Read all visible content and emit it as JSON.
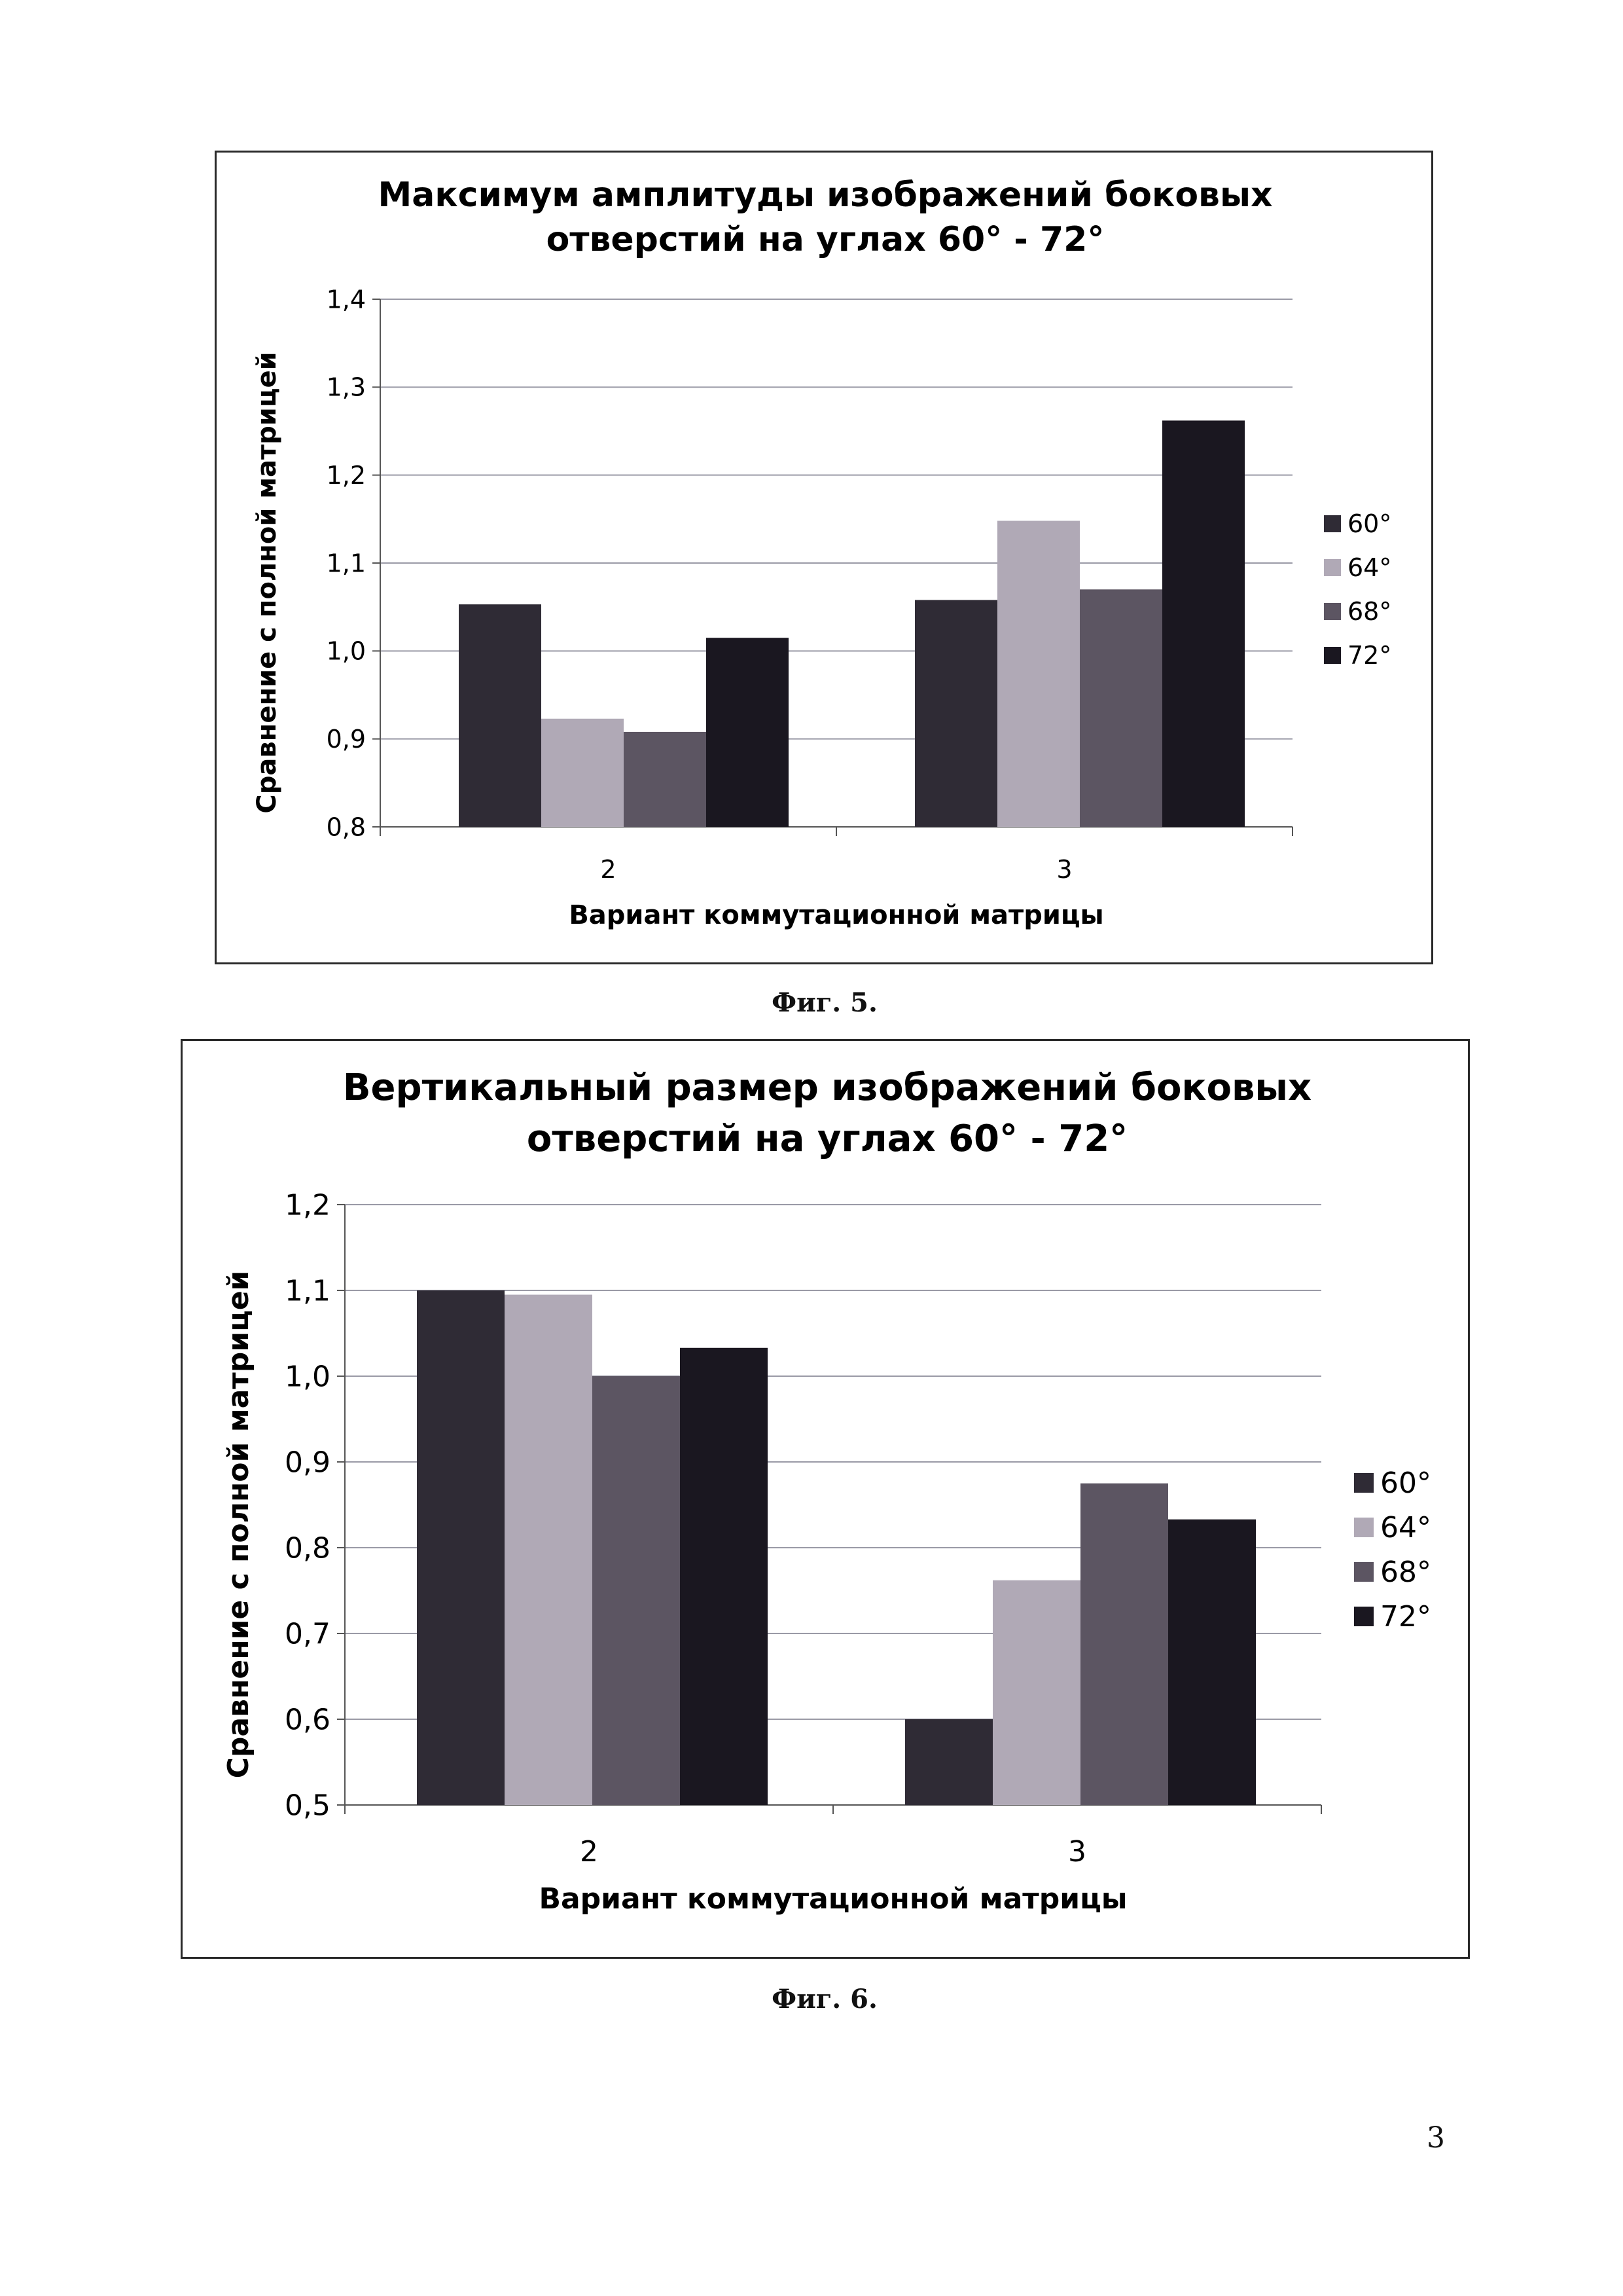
{
  "chart_data": [
    {
      "id": "fig5",
      "type": "bar",
      "title_lines": [
        "Максимум амплитуды изображений боковых",
        "отверстий на углах 60° - 72°"
      ],
      "xlabel": "Вариант  коммутационной матрицы",
      "ylabel": "Сравнение с полной матрицей",
      "categories": [
        "2",
        "3"
      ],
      "ylim": [
        0.8,
        1.4
      ],
      "yticks": [
        0.8,
        0.9,
        1.0,
        1.1,
        1.2,
        1.3,
        1.4
      ],
      "ytick_labels": [
        "0,8",
        "0,9",
        "1,0",
        "1,1",
        "1,2",
        "1,3",
        "1,4"
      ],
      "grid": true,
      "legend_position": "right",
      "series": [
        {
          "name": "60°",
          "color": "#2f2b35",
          "values": [
            1.053,
            1.058
          ]
        },
        {
          "name": "64°",
          "color": "#b0a9b6",
          "values": [
            0.923,
            1.148
          ]
        },
        {
          "name": "68°",
          "color": "#5c5562",
          "values": [
            0.908,
            1.07
          ]
        },
        {
          "name": "72°",
          "color": "#1a1720",
          "values": [
            1.015,
            1.262
          ]
        }
      ]
    },
    {
      "id": "fig6",
      "type": "bar",
      "title_lines": [
        "Вертикальный размер изображений боковых",
        "отверстий на углах 60° - 72°"
      ],
      "xlabel": "Вариант  коммутационной матрицы",
      "ylabel": "Сравнение с полной матрицей",
      "categories": [
        "2",
        "3"
      ],
      "ylim": [
        0.5,
        1.2
      ],
      "yticks": [
        0.5,
        0.6,
        0.7,
        0.8,
        0.9,
        1.0,
        1.1,
        1.2
      ],
      "ytick_labels": [
        "0,5",
        "0,6",
        "0,7",
        "0,8",
        "0,9",
        "1,0",
        "1,1",
        "1,2"
      ],
      "grid": true,
      "legend_position": "right",
      "series": [
        {
          "name": "60°",
          "color": "#2f2b35",
          "values": [
            1.1,
            0.6
          ]
        },
        {
          "name": "64°",
          "color": "#b0a9b6",
          "values": [
            1.095,
            0.762
          ]
        },
        {
          "name": "68°",
          "color": "#5c5562",
          "values": [
            1.0,
            0.875
          ]
        },
        {
          "name": "72°",
          "color": "#1a1720",
          "values": [
            1.033,
            0.833
          ]
        }
      ]
    }
  ],
  "captions": {
    "fig5": "Фиг. 5.",
    "fig6": "Фиг. 6."
  },
  "page_number": "3"
}
